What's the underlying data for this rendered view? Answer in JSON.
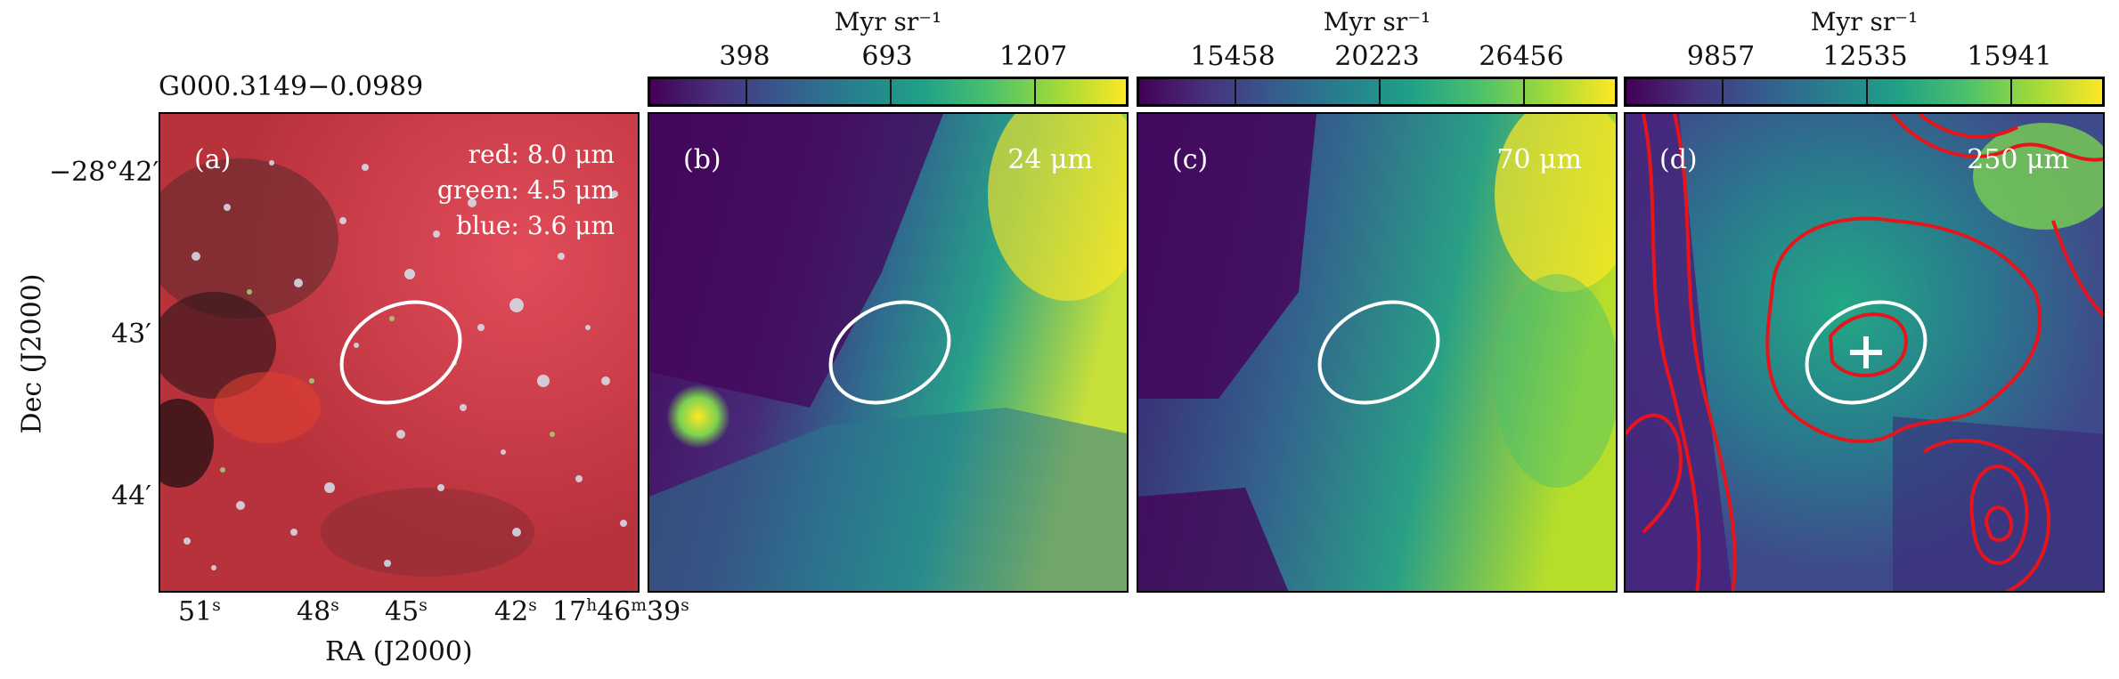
{
  "source_name": "G000.3149−0.0989",
  "colorbar_unit": "Myr sr⁻¹",
  "panels": [
    {
      "id": "a",
      "label": "(a)",
      "channels": [
        "red: 8.0 μm",
        "green: 4.5 μm",
        "blue: 3.6 μm"
      ]
    },
    {
      "id": "b",
      "label": "(b)",
      "wavelength": "24 μm",
      "cbar_ticks": [
        "398",
        "693",
        "1207"
      ]
    },
    {
      "id": "c",
      "label": "(c)",
      "wavelength": "70 μm",
      "cbar_ticks": [
        "15458",
        "20223",
        "26456"
      ]
    },
    {
      "id": "d",
      "label": "(d)",
      "wavelength": "250 μm",
      "cbar_ticks": [
        "9857",
        "12535",
        "15941"
      ]
    }
  ],
  "axes": {
    "xlabel": "RA (J2000)",
    "ylabel": "Dec (J2000)",
    "dec_ticks": [
      "−28°42′",
      "43′",
      "44′"
    ],
    "ra_ticks": [
      "51",
      "48",
      "45",
      "42",
      "17",
      "46",
      "39"
    ],
    "ra_units": [
      "s",
      "h",
      "m"
    ]
  },
  "colors": {
    "ellipse": "#ffffff",
    "contour": "#e8141b",
    "colormap": "viridis"
  }
}
